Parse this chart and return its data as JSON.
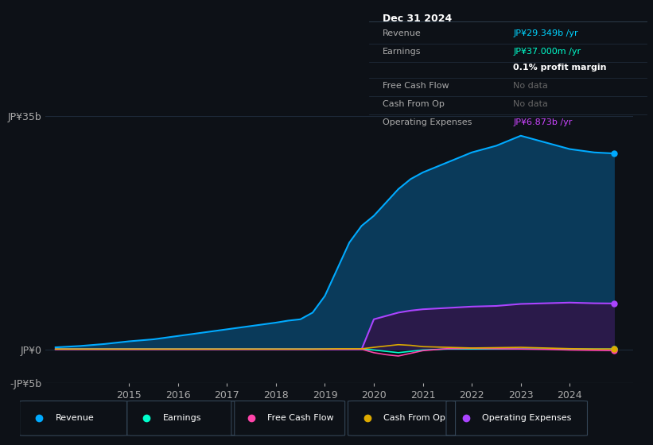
{
  "background_color": "#0d1117",
  "plot_bg_color": "#0d1117",
  "ylim": [
    -5000000000.0,
    35000000000.0
  ],
  "grid_color": "#1e2a3a",
  "years": [
    2013.5,
    2014,
    2014.5,
    2015,
    2015.5,
    2016,
    2016.5,
    2017,
    2017.5,
    2018,
    2018.25,
    2018.5,
    2018.75,
    2019,
    2019.25,
    2019.5,
    2019.75,
    2020,
    2020.25,
    2020.5,
    2020.75,
    2021,
    2021.5,
    2022,
    2022.5,
    2023,
    2023.5,
    2024,
    2024.5,
    2024.9
  ],
  "revenue": [
    300000000,
    500000000,
    800000000,
    1200000000,
    1500000000,
    2000000000,
    2500000000,
    3000000000,
    3500000000,
    4000000000,
    4300000000,
    4500000000,
    5500000000,
    8000000000,
    12000000000,
    16000000000,
    18500000000,
    20000000000,
    22000000000,
    24000000000,
    25500000000,
    26500000000,
    28000000000,
    29500000000,
    30500000000,
    32000000000,
    31000000000,
    30000000000,
    29500000000,
    29349000000
  ],
  "earnings": [
    50000000,
    50000000,
    50000000,
    50000000,
    50000000,
    50000000,
    50000000,
    50000000,
    50000000,
    50000000,
    50000000,
    50000000,
    50000000,
    50000000,
    50000000,
    50000000,
    50000000,
    -100000000,
    -300000000,
    -500000000,
    -300000000,
    -100000000,
    50000000,
    50000000,
    50000000,
    50000000,
    50000000,
    50000000,
    37000000,
    37000000
  ],
  "free_cash_flow": [
    20000000,
    20000000,
    20000000,
    20000000,
    20000000,
    20000000,
    20000000,
    20000000,
    20000000,
    20000000,
    20000000,
    20000000,
    20000000,
    20000000,
    20000000,
    20000000,
    20000000,
    -500000000,
    -800000000,
    -1000000000,
    -600000000,
    -200000000,
    100000000,
    150000000,
    100000000,
    50000000,
    0,
    -100000000,
    -150000000,
    -200000000
  ],
  "cash_from_op": [
    30000000,
    30000000,
    30000000,
    30000000,
    30000000,
    30000000,
    30000000,
    30000000,
    30000000,
    30000000,
    30000000,
    30000000,
    30000000,
    50000000,
    80000000,
    80000000,
    80000000,
    300000000,
    500000000,
    700000000,
    600000000,
    400000000,
    300000000,
    200000000,
    250000000,
    300000000,
    200000000,
    100000000,
    50000000,
    50000000
  ],
  "op_expenses": [
    0,
    0,
    0,
    0,
    0,
    0,
    0,
    0,
    0,
    0,
    0,
    0,
    0,
    0,
    0,
    0,
    0,
    4500000000,
    5000000000,
    5500000000,
    5800000000,
    6000000000,
    6200000000,
    6400000000,
    6500000000,
    6800000000,
    6900000000,
    7000000000,
    6900000000,
    6873000000
  ],
  "revenue_color": "#00aaff",
  "revenue_fill": "#0a3a5a",
  "earnings_color": "#00ffcc",
  "free_cash_flow_color": "#ff44aa",
  "cash_from_op_color": "#ddaa00",
  "op_expenses_color": "#aa44ff",
  "op_expenses_fill": "#2a1a4a",
  "legend_items": [
    {
      "label": "Revenue",
      "color": "#00aaff"
    },
    {
      "label": "Earnings",
      "color": "#00ffcc"
    },
    {
      "label": "Free Cash Flow",
      "color": "#ff44aa"
    },
    {
      "label": "Cash From Op",
      "color": "#ddaa00"
    },
    {
      "label": "Operating Expenses",
      "color": "#aa44ff"
    }
  ],
  "xticks": [
    2015,
    2016,
    2017,
    2018,
    2019,
    2020,
    2021,
    2022,
    2023,
    2024
  ],
  "box_date": "Dec 31 2024",
  "box_rows": [
    {
      "label": "Revenue",
      "value": "JP¥29.349b /yr",
      "value_color": "#00d4ff"
    },
    {
      "label": "Earnings",
      "value": "JP¥37.000m /yr",
      "value_color": "#00ffcc"
    },
    {
      "label": "",
      "value": "0.1% profit margin",
      "value_color": "#ffffff"
    },
    {
      "label": "Free Cash Flow",
      "value": "No data",
      "value_color": "#666666"
    },
    {
      "label": "Cash From Op",
      "value": "No data",
      "value_color": "#666666"
    },
    {
      "label": "Operating Expenses",
      "value": "JP¥6.873b /yr",
      "value_color": "#cc44ff"
    }
  ]
}
